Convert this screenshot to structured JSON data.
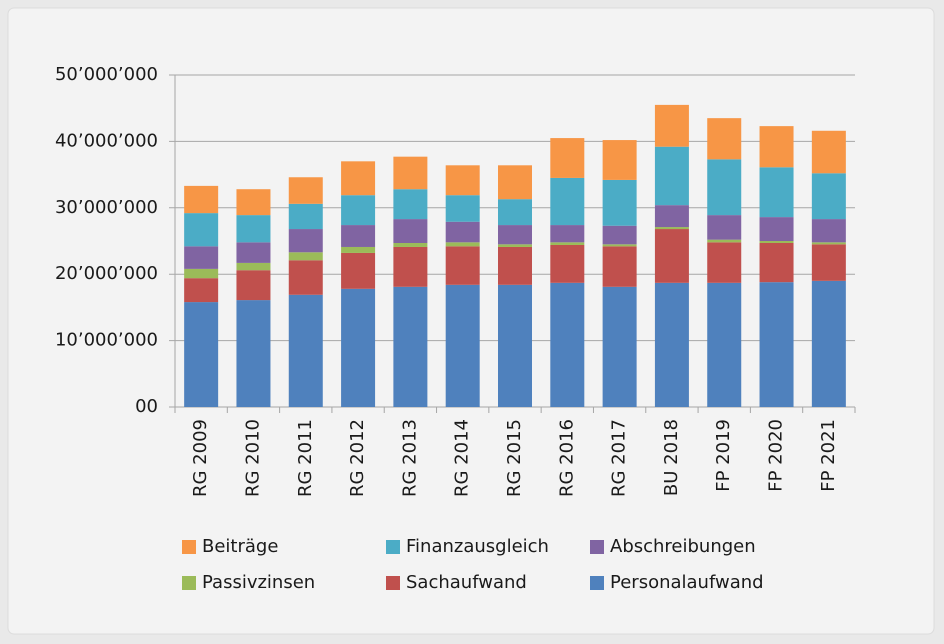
{
  "chart_data": {
    "type": "stacked_bar",
    "categories": [
      "RG 2009",
      "RG 2010",
      "RG 2011",
      "RG 2012",
      "RG 2013",
      "RG 2014",
      "RG 2015",
      "RG 2016",
      "RG 2017",
      "BU 2018",
      "FP 2019",
      "FP 2020",
      "FP 2021"
    ],
    "series": [
      {
        "name": "Personalaufwand",
        "color": "#4f81bd",
        "values": [
          15800000,
          16100000,
          16900000,
          17800000,
          18100000,
          18400000,
          18400000,
          18700000,
          18100000,
          18700000,
          18700000,
          18800000,
          19000000
        ]
      },
      {
        "name": "Sachaufwand",
        "color": "#c0504d",
        "values": [
          3600000,
          4500000,
          5200000,
          5400000,
          6000000,
          5800000,
          5700000,
          5700000,
          6100000,
          8100000,
          6100000,
          5900000,
          5500000
        ]
      },
      {
        "name": "Passivzinsen",
        "color": "#9bbb59",
        "values": [
          1400000,
          1100000,
          1200000,
          900000,
          600000,
          600000,
          400000,
          400000,
          300000,
          300000,
          400000,
          300000,
          300000
        ]
      },
      {
        "name": "Abschreibungen",
        "color": "#8064a2",
        "values": [
          3400000,
          3100000,
          3500000,
          3300000,
          3600000,
          3100000,
          2900000,
          2600000,
          2800000,
          3300000,
          3700000,
          3600000,
          3500000
        ]
      },
      {
        "name": "Finanzausgleich",
        "color": "#4bacc6",
        "values": [
          5000000,
          4100000,
          3800000,
          4500000,
          4500000,
          4000000,
          3900000,
          7100000,
          6900000,
          8800000,
          8400000,
          7500000,
          6900000
        ]
      },
      {
        "name": "Beiträge",
        "color": "#f79646",
        "values": [
          4100000,
          3900000,
          4000000,
          5100000,
          4900000,
          4500000,
          5100000,
          6000000,
          6000000,
          6300000,
          6200000,
          6200000,
          6400000
        ]
      }
    ],
    "ylim": [
      0,
      50000000
    ],
    "yticks": [
      {
        "value": 0,
        "label": "00"
      },
      {
        "value": 10000000,
        "label": "10’000’000"
      },
      {
        "value": 20000000,
        "label": "20’000’000"
      },
      {
        "value": 30000000,
        "label": "30’000’000"
      },
      {
        "value": 40000000,
        "label": "40’000’000"
      },
      {
        "value": 50000000,
        "label": "50’000’000"
      }
    ],
    "grid": true,
    "legend": "bottom"
  }
}
